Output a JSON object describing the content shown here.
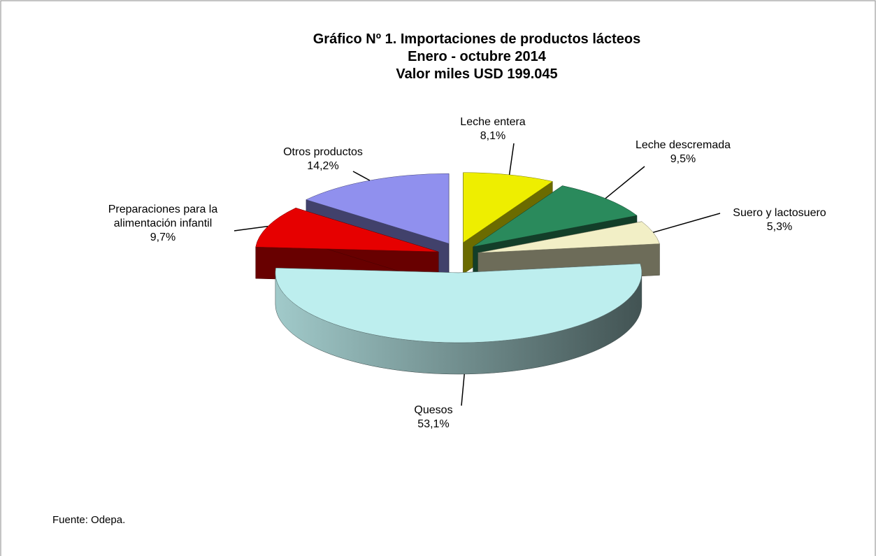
{
  "chart_data": {
    "type": "pie3d",
    "title": [
      "Gráfico Nº 1. Importaciones de productos lácteos",
      "Enero - octubre 2014",
      "Valor miles USD 199.045"
    ],
    "categories": [
      "Leche entera",
      "Leche descremada",
      "Suero y lactosuero",
      "Quesos",
      "Preparaciones para la alimentación infantil",
      "Otros productos"
    ],
    "values": [
      8.1,
      9.5,
      5.3,
      53.1,
      9.7,
      14.2
    ],
    "value_labels": [
      "8,1%",
      "9,5%",
      "5,3%",
      "53,1%",
      "9,7%",
      "14,2%"
    ],
    "colors": [
      "#eeee00",
      "#2a8a5c",
      "#f2efc6",
      "#bdeeee",
      "#e60000",
      "#9090ee"
    ],
    "source": "Fuente: Odepa."
  }
}
